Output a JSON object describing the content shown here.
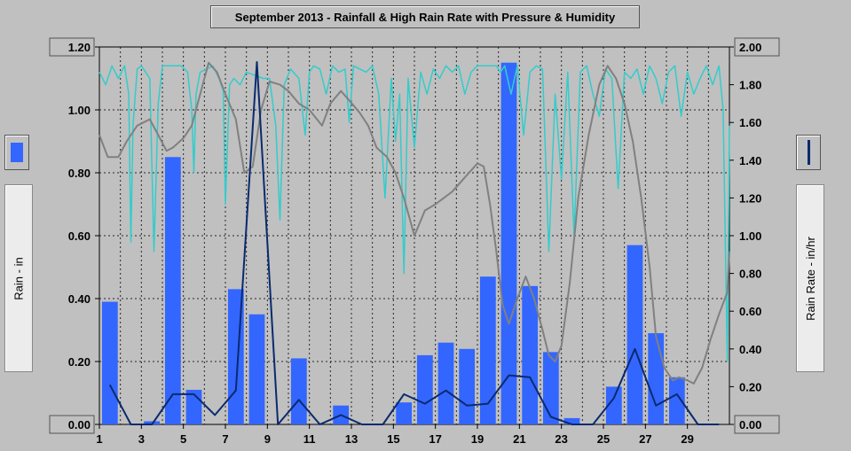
{
  "chart_data": {
    "type": "bar",
    "title": "September 2013 - Rainfall & High Rain Rate with Pressure & Humidity",
    "ylabel_left": "Rain - in",
    "ylabel_right": "Rain Rate - in/hr",
    "ylim_left": [
      0,
      1.2
    ],
    "ylim_right": [
      0,
      2.0
    ],
    "xlim": [
      1,
      31
    ],
    "grid": true,
    "left_ticks": [
      "0.00",
      "0.20",
      "0.40",
      "0.60",
      "0.80",
      "1.00",
      "1.20"
    ],
    "right_ticks": [
      "0.00",
      "0.20",
      "0.40",
      "0.60",
      "0.80",
      "1.00",
      "1.20",
      "1.40",
      "1.60",
      "1.80",
      "2.00"
    ],
    "x_ticks": [
      "1",
      "3",
      "5",
      "7",
      "9",
      "11",
      "13",
      "15",
      "17",
      "19",
      "21",
      "23",
      "25",
      "27",
      "29"
    ],
    "colors": {
      "rain_bar": "#3366ff",
      "rain_rate_line": "#0a2a6e",
      "pressure_line": "#808080",
      "humidity_line": "#33cccc",
      "plot_bg": "#c0c0c0"
    },
    "series": [
      {
        "type": "bar",
        "axis": "left",
        "days": [
          1,
          2,
          3,
          4,
          5,
          6,
          7,
          8,
          9,
          10,
          11,
          12,
          13,
          14,
          15,
          16,
          17,
          18,
          19,
          20,
          21,
          22,
          23,
          24,
          25,
          26,
          27,
          28,
          29,
          30
        ],
        "values": [
          0.39,
          0,
          0.01,
          0.85,
          0.11,
          0,
          0.43,
          0.35,
          0,
          0.21,
          0,
          0.06,
          0,
          0,
          0.07,
          0.22,
          0.26,
          0.24,
          0.47,
          1.15,
          0.44,
          0.23,
          0.02,
          0,
          0.12,
          0.57,
          0.29,
          0.15,
          0,
          0
        ]
      },
      {
        "type": "line",
        "axis": "right",
        "x": [
          1.5,
          2.5,
          3.5,
          4.5,
          5.5,
          6.5,
          7.5,
          8.5,
          9.5,
          10.5,
          11.5,
          12.5,
          13.5,
          14.5,
          15.5,
          16.5,
          17.5,
          18.5,
          19.5,
          20.5,
          21.5,
          22.5,
          23.5,
          24.5,
          25.5,
          26.5,
          27.5,
          28.5,
          29.5,
          30.5
        ],
        "y": [
          0.21,
          0,
          0,
          0.16,
          0.16,
          0.05,
          0.18,
          1.92,
          0,
          0.13,
          0,
          0.05,
          0,
          0,
          0.16,
          0.11,
          0.18,
          0.1,
          0.11,
          0.26,
          0.25,
          0.04,
          0,
          0,
          0.14,
          0.4,
          0.1,
          0.16,
          0,
          0
        ]
      },
      {
        "type": "line",
        "axis": "left",
        "x": [
          1,
          1.4,
          1.9,
          2.3,
          2.8,
          3.4,
          3.8,
          4.2,
          4.5,
          5,
          5.4,
          5.8,
          6.2,
          6.6,
          7,
          7.5,
          7.9,
          8.3,
          8.7,
          9.1,
          9.6,
          10,
          10.5,
          11,
          11.6,
          12,
          12.5,
          12.9,
          13.4,
          13.8,
          14.2,
          14.7,
          15.1,
          15.5,
          16,
          16.5,
          17,
          17.4,
          17.8,
          18.2,
          18.6,
          19,
          19.3,
          19.6,
          19.9,
          20.2,
          20.5,
          20.9,
          21.3,
          21.7,
          22.1,
          22.4,
          22.7,
          23,
          23.4,
          23.8,
          24.3,
          24.8,
          25.2,
          25.6,
          26,
          26.4,
          26.8,
          27.2,
          27.5,
          27.9,
          28.3,
          28.6,
          29,
          29.3,
          29.7,
          30.1,
          30.5,
          30.9,
          31
        ],
        "y": [
          0.92,
          0.85,
          0.85,
          0.9,
          0.95,
          0.97,
          0.92,
          0.87,
          0.88,
          0.91,
          0.95,
          1.05,
          1.15,
          1.12,
          1.05,
          0.97,
          0.8,
          0.82,
          1.0,
          1.09,
          1.08,
          1.06,
          1.02,
          1.0,
          0.95,
          1.02,
          1.06,
          1.03,
          0.99,
          0.95,
          0.88,
          0.85,
          0.8,
          0.72,
          0.6,
          0.68,
          0.7,
          0.72,
          0.74,
          0.77,
          0.8,
          0.83,
          0.82,
          0.7,
          0.55,
          0.38,
          0.32,
          0.4,
          0.47,
          0.4,
          0.3,
          0.22,
          0.2,
          0.25,
          0.45,
          0.72,
          0.92,
          1.08,
          1.14,
          1.1,
          1.02,
          0.9,
          0.72,
          0.5,
          0.28,
          0.18,
          0.14,
          0.15,
          0.14,
          0.13,
          0.18,
          0.27,
          0.35,
          0.42,
          0.55
        ]
      },
      {
        "type": "line",
        "axis": "left",
        "x": [
          1,
          1.3,
          1.6,
          1.9,
          2.2,
          2.4,
          2.5,
          2.6,
          2.8,
          3.0,
          3.2,
          3.4,
          3.6,
          3.8,
          4.0,
          4.3,
          4.6,
          4.9,
          5.2,
          5.4,
          5.5,
          5.6,
          5.8,
          6.1,
          6.4,
          6.7,
          6.9,
          7.0,
          7.2,
          7.4,
          7.7,
          8.0,
          8.4,
          8.8,
          9.1,
          9.4,
          9.6,
          9.8,
          10.1,
          10.5,
          10.8,
          11.0,
          11.2,
          11.5,
          11.8,
          12.1,
          12.4,
          12.7,
          12.9,
          13.1,
          13.4,
          13.7,
          14.0,
          14.3,
          14.6,
          14.9,
          15.1,
          15.3,
          15.5,
          15.7,
          16.0,
          16.3,
          16.6,
          16.9,
          17.2,
          17.5,
          17.8,
          18.1,
          18.4,
          18.7,
          19.0,
          19.3,
          19.6,
          19.9,
          20.1,
          20.3,
          20.6,
          20.9,
          21.2,
          21.5,
          21.8,
          22.1,
          22.4,
          22.7,
          23.0,
          23.3,
          23.6,
          23.9,
          24.2,
          24.5,
          24.8,
          25.1,
          25.4,
          25.7,
          26.0,
          26.3,
          26.6,
          26.9,
          27.2,
          27.5,
          27.8,
          28.1,
          28.4,
          28.7,
          29.0,
          29.3,
          29.6,
          29.9,
          30.2,
          30.5,
          30.7,
          30.9,
          31
        ],
        "y": [
          1.12,
          1.08,
          1.14,
          1.1,
          1.14,
          1.05,
          0.58,
          0.95,
          1.13,
          1.14,
          1.12,
          1.1,
          0.55,
          1.02,
          1.14,
          1.14,
          1.14,
          1.14,
          1.12,
          1.0,
          0.8,
          1.05,
          1.12,
          1.13,
          1.14,
          1.1,
          1.06,
          0.7,
          1.08,
          1.1,
          1.08,
          1.12,
          1.11,
          1.1,
          1.1,
          0.95,
          0.65,
          1.08,
          1.13,
          1.1,
          0.92,
          1.12,
          1.14,
          1.13,
          1.05,
          1.14,
          1.12,
          1.13,
          0.96,
          1.14,
          1.13,
          1.12,
          1.14,
          1.05,
          0.72,
          1.1,
          0.9,
          1.05,
          0.48,
          1.1,
          0.88,
          1.12,
          1.05,
          1.13,
          1.1,
          1.14,
          1.12,
          1.14,
          1.05,
          1.12,
          1.14,
          1.14,
          1.14,
          1.14,
          1.12,
          1.14,
          1.05,
          1.14,
          0.92,
          1.12,
          1.14,
          1.13,
          0.55,
          1.05,
          0.78,
          1.12,
          0.6,
          1.12,
          1.14,
          1.05,
          0.98,
          1.13,
          1.1,
          0.75,
          1.12,
          1.1,
          1.13,
          1.05,
          1.14,
          1.1,
          1.02,
          1.12,
          1.14,
          0.98,
          1.12,
          1.05,
          1.1,
          1.14,
          1.08,
          1.14,
          1.0,
          0.2,
          0.95
        ]
      }
    ]
  }
}
